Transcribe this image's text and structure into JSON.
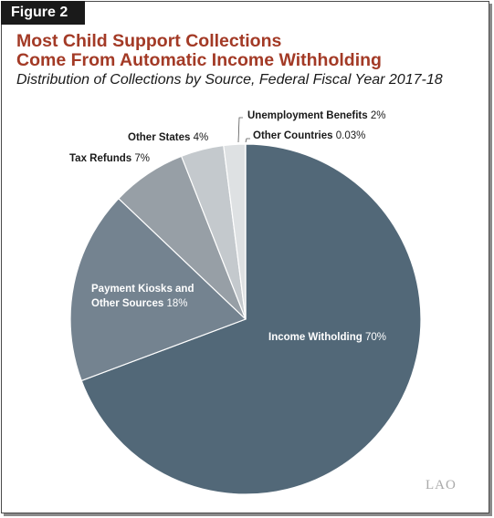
{
  "figure_label": "Figure 2",
  "title_line1": "Most Child Support Collections",
  "title_line2": "Come From Automatic Income Withholding",
  "subtitle": "Distribution of Collections by Source, Federal Fiscal Year 2017-18",
  "logo_text": "LAO",
  "chart_data": {
    "type": "pie",
    "title": "Most Child Support Collections Come From Automatic Income Withholding",
    "subtitle": "Distribution of Collections by Source, Federal Fiscal Year 2017-18",
    "start_angle_deg": 0,
    "direction": "clockwise",
    "slices": [
      {
        "name_lines": [
          "Income Witholding"
        ],
        "value": 70,
        "value_label": "70%",
        "color": "#526878",
        "label_color": "#ffffff"
      },
      {
        "name_lines": [
          "Payment Kiosks and",
          "Other Sources"
        ],
        "value": 18,
        "value_label": "18%",
        "color": "#748390",
        "label_color": "#ffffff"
      },
      {
        "name_lines": [
          "Tax Refunds"
        ],
        "value": 7,
        "value_label": "7%",
        "color": "#979fa6",
        "label_color": "#1a1a1a"
      },
      {
        "name_lines": [
          "Other States"
        ],
        "value": 4,
        "value_label": "4%",
        "color": "#c4c9cd",
        "label_color": "#1a1a1a"
      },
      {
        "name_lines": [
          "Unemployment Benefits"
        ],
        "value": 2,
        "value_label": "2%",
        "color": "#dee1e3",
        "label_color": "#1a1a1a"
      },
      {
        "name_lines": [
          "Other Countries"
        ],
        "value": 0.03,
        "value_label": "0.03%",
        "color": "#eef0f1",
        "label_color": "#1a1a1a"
      }
    ]
  }
}
